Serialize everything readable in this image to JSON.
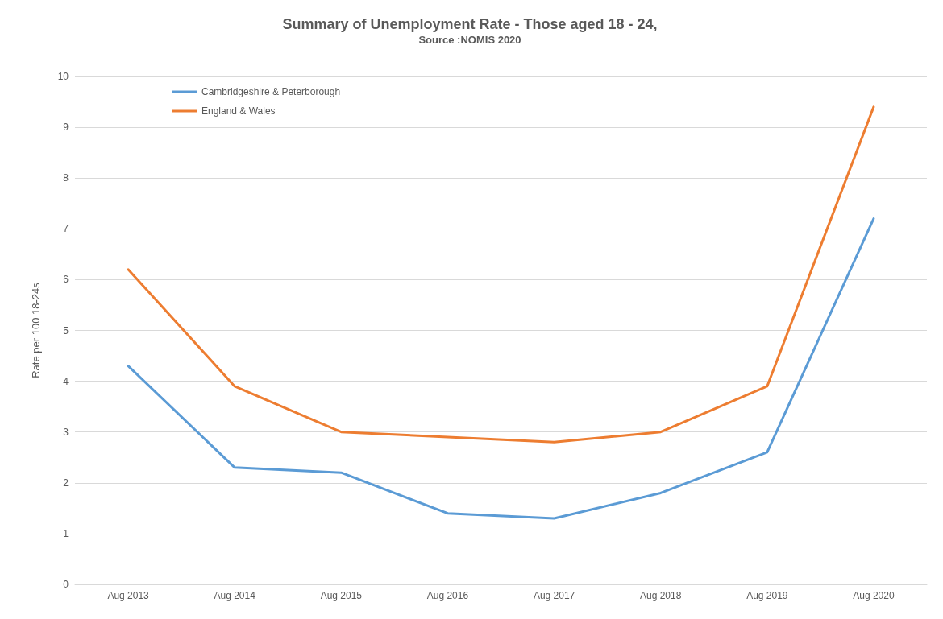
{
  "chart_data": {
    "type": "line",
    "title": "Summary of Unemployment Rate - Those aged 18 - 24,",
    "subtitle": "Source :NOMIS 2020",
    "ylabel": "Rate per 100 18-24s",
    "categories": [
      "Aug 2013",
      "Aug 2014",
      "Aug 2015",
      "Aug 2016",
      "Aug 2017",
      "Aug 2018",
      "Aug 2019",
      "Aug 2020"
    ],
    "series": [
      {
        "name": "Cambridgeshire & Peterborough",
        "color": "#5b9bd5",
        "values": [
          4.3,
          2.3,
          2.2,
          1.4,
          1.3,
          1.8,
          2.6,
          7.2
        ]
      },
      {
        "name": "England & Wales",
        "color": "#ed7d31",
        "values": [
          6.2,
          3.9,
          3.0,
          2.9,
          2.8,
          3.0,
          3.9,
          9.4
        ]
      }
    ],
    "ylim": [
      0,
      10
    ],
    "yticks": [
      0,
      1,
      2,
      3,
      4,
      5,
      6,
      7,
      8,
      9,
      10
    ],
    "grid": "y",
    "legend": "top left",
    "marker": "none",
    "line_style": "solid"
  }
}
